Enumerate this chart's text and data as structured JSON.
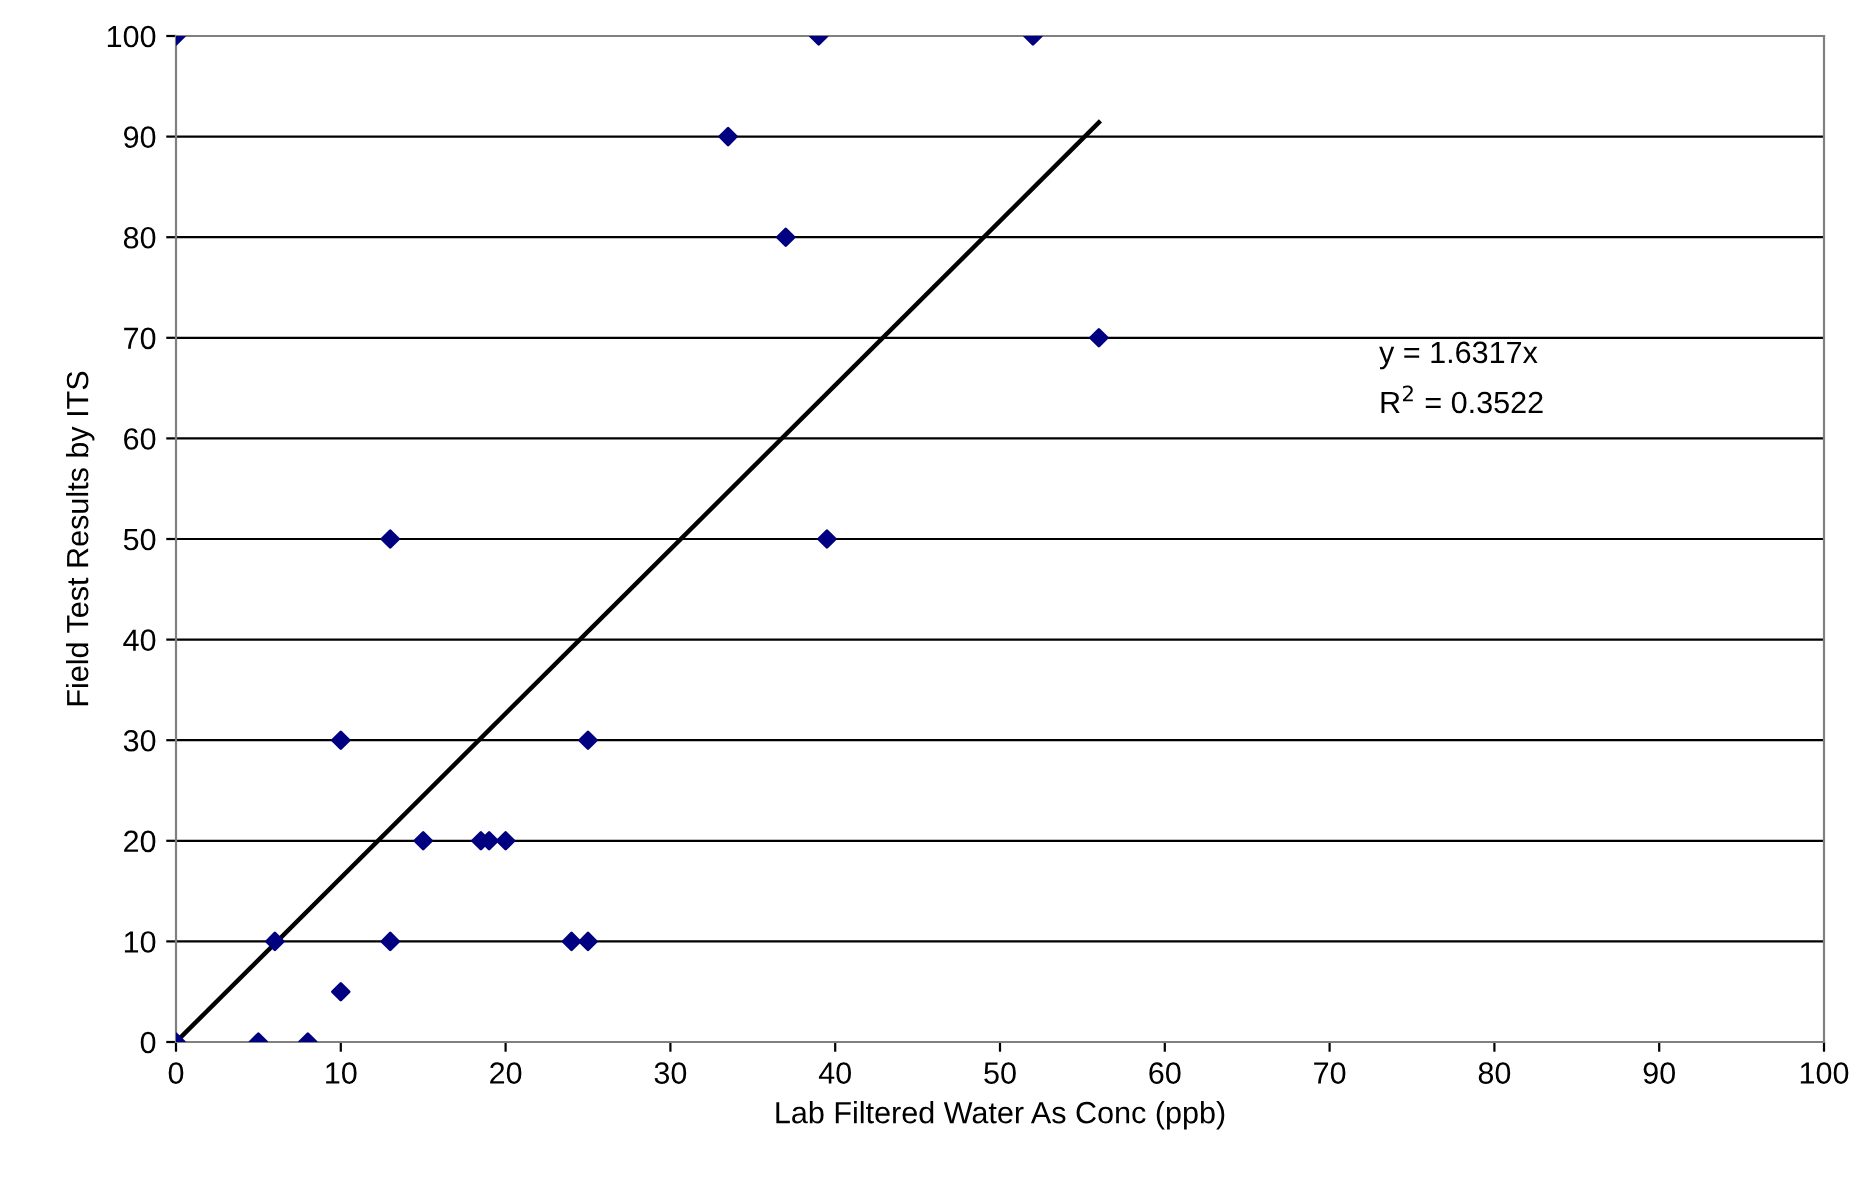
{
  "chart_data": {
    "type": "scatter",
    "xlabel": "Lab Filtered Water As Conc (ppb)",
    "ylabel": "Field Test Results by ITS",
    "xlim": [
      0,
      100
    ],
    "xticks": [
      0,
      10,
      20,
      30,
      40,
      50,
      60,
      70,
      80,
      90,
      100
    ],
    "ylim": [
      0,
      100
    ],
    "yticks": [
      0,
      10,
      20,
      30,
      40,
      50,
      60,
      70,
      80,
      90,
      100
    ],
    "grid": "y",
    "legend": false,
    "annotations": [
      "y = 1.6317x",
      "R$^{2}$ = 0.3522"
    ],
    "series": [
      {
        "marker": "diamond",
        "color": "#000080",
        "x": [
          0,
          39,
          52,
          33.5,
          37,
          56,
          39.5,
          13,
          10,
          25,
          15,
          18.5,
          19,
          20,
          6,
          13,
          24,
          25,
          10,
          5,
          8,
          0
        ],
        "values": [
          100,
          100,
          100,
          90,
          80,
          70,
          50,
          50,
          30,
          30,
          20,
          20,
          20,
          20,
          10,
          10,
          10,
          10,
          5,
          0,
          0,
          0
        ]
      },
      {
        "type": "line",
        "marker": "none",
        "color": "#000000",
        "x": [
          0,
          56
        ],
        "values": [
          0,
          91.4
        ]
      }
    ]
  }
}
